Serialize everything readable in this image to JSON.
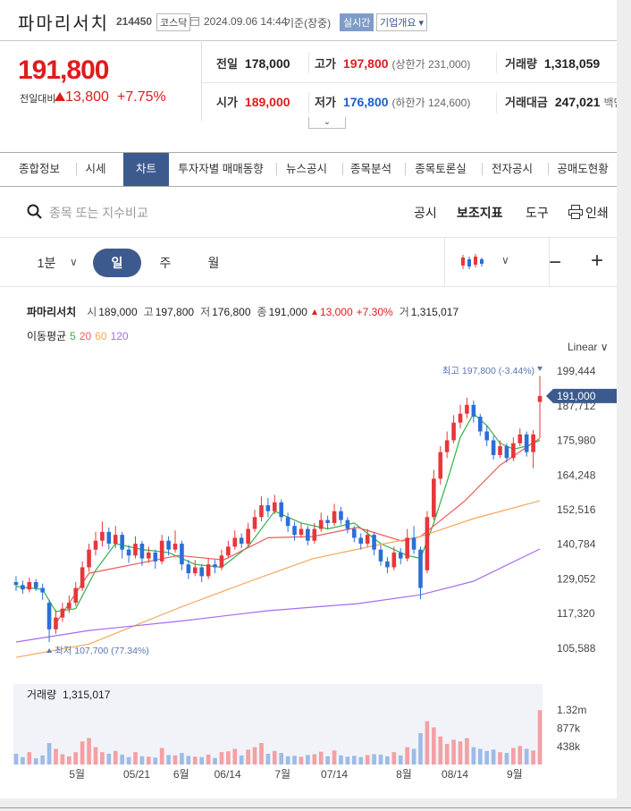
{
  "header": {
    "title": "파마리서치",
    "code": "214450",
    "market": "코스닥",
    "datetime": "2024.09.06 14:44",
    "basis": "기준(장중)",
    "realtime": "실시간",
    "company_info": "기업개요"
  },
  "quote": {
    "price": "191,800",
    "change_label": "전일대비",
    "change": "13,800",
    "change_pct": "+7.75%",
    "stats": [
      {
        "label": "전일",
        "value": "178,000",
        "color": "#222222"
      },
      {
        "label": "고가",
        "value": "197,800",
        "note": "(상한가 231,000)",
        "color": "#e01c1c"
      },
      {
        "label": "거래량",
        "value": "1,318,059",
        "color": "#222222"
      },
      {
        "label": "시가",
        "value": "189,000",
        "color": "#e01c1c"
      },
      {
        "label": "저가",
        "value": "176,800",
        "note": "(하한가 124,600)",
        "color": "#1a5fd0"
      },
      {
        "label": "거래대금",
        "value": "247,021",
        "note": "백만",
        "color": "#222222"
      }
    ]
  },
  "tabs": [
    {
      "label": "종합정보"
    },
    {
      "label": "시세"
    },
    {
      "label": "차트",
      "active": true
    },
    {
      "label": "투자자별 매매동향"
    },
    {
      "label": "뉴스공시"
    },
    {
      "label": "종목분석"
    },
    {
      "label": "종목토론실"
    },
    {
      "label": "전자공시"
    },
    {
      "label": "공매도현황"
    }
  ],
  "toolbar": {
    "search_placeholder": "종목 또는 지수비교",
    "links": [
      "공시",
      "보조지표",
      "도구",
      "인쇄"
    ]
  },
  "periods": [
    {
      "label": "1분"
    },
    {
      "label": "일",
      "active": true
    },
    {
      "label": "주"
    },
    {
      "label": "월"
    }
  ],
  "chart_data": {
    "type": "candlestick",
    "info": {
      "name": "파마리서치",
      "items": [
        {
          "label": "시",
          "value": "189,000"
        },
        {
          "label": "고",
          "value": "197,800"
        },
        {
          "label": "저",
          "value": "176,800"
        },
        {
          "label": "종",
          "value": "191,000"
        }
      ],
      "change": "13,000",
      "change_pct": "+7.30%",
      "volume_label": "거",
      "volume": "1,315,017"
    },
    "ma_title": "이동평균",
    "scale_label": "Linear",
    "high_label": "최고 197,800 (-3.44%)",
    "low_label": "최저 107,700 (77.34%)",
    "last_label": "191,000",
    "up_color": "#e8363b",
    "down_color": "#2b6fd6",
    "volume_up_color": "#f4a0a3",
    "volume_down_color": "#9dbbe8",
    "grid": false,
    "xlim": [
      -0.4,
      79.4
    ],
    "xticks": [
      {
        "value": 9.2,
        "label": "5월"
      },
      {
        "value": 18.2,
        "label": "05/21"
      },
      {
        "value": 24.9,
        "label": "6월"
      },
      {
        "value": 31.9,
        "label": "06/14"
      },
      {
        "value": 40.2,
        "label": "7월"
      },
      {
        "value": 48,
        "label": "07/14"
      },
      {
        "value": 58.5,
        "label": "8월"
      },
      {
        "value": 66.2,
        "label": "08/14"
      },
      {
        "value": 75.2,
        "label": "9월"
      }
    ],
    "ylim": [
      96504,
      205500
    ],
    "yticks": [
      {
        "value": 105588,
        "label": "105,588"
      },
      {
        "value": 117320,
        "label": "117,320"
      },
      {
        "value": 129052,
        "label": "129,052"
      },
      {
        "value": 140784,
        "label": "140,784"
      },
      {
        "value": 152516,
        "label": "152,516"
      },
      {
        "value": 164248,
        "label": "164,248"
      },
      {
        "value": 175980,
        "label": "175,980"
      },
      {
        "value": 187712,
        "label": "187,712"
      },
      {
        "value": 199444,
        "label": "199,444"
      }
    ],
    "candles": [
      [
        128000,
        130000,
        125000,
        127000
      ],
      [
        127000,
        128500,
        124000,
        125500
      ],
      [
        125500,
        129500,
        124500,
        128000
      ],
      [
        128000,
        129000,
        125000,
        126000
      ],
      [
        126000,
        127500,
        122000,
        124500
      ],
      [
        121000,
        122000,
        107700,
        112000
      ],
      [
        112000,
        118500,
        110500,
        116000
      ],
      [
        116000,
        121000,
        114500,
        119000
      ],
      [
        119000,
        123500,
        117500,
        121000
      ],
      [
        121000,
        128000,
        120000,
        126000
      ],
      [
        126000,
        135000,
        125000,
        133000
      ],
      [
        133000,
        141000,
        131500,
        139000
      ],
      [
        139000,
        145000,
        137000,
        142000
      ],
      [
        142000,
        148500,
        140000,
        145000
      ],
      [
        145000,
        146500,
        139000,
        141000
      ],
      [
        141000,
        147000,
        139500,
        144000
      ],
      [
        144000,
        145000,
        136000,
        139000
      ],
      [
        139000,
        140500,
        134500,
        137000
      ],
      [
        137000,
        143500,
        136000,
        141000
      ],
      [
        141000,
        142000,
        133500,
        136000
      ],
      [
        136000,
        140000,
        134500,
        138000
      ],
      [
        138000,
        139000,
        132500,
        135000
      ],
      [
        135000,
        144000,
        134000,
        142000
      ],
      [
        142000,
        143500,
        137000,
        139000
      ],
      [
        139000,
        145500,
        138000,
        141000
      ],
      [
        141000,
        142000,
        132000,
        134000
      ],
      [
        134000,
        135500,
        129000,
        131000
      ],
      [
        131000,
        135500,
        130000,
        133000
      ],
      [
        133000,
        134000,
        128000,
        130000
      ],
      [
        130000,
        136000,
        129000,
        134000
      ],
      [
        134000,
        135500,
        131000,
        133000
      ],
      [
        133000,
        139000,
        132000,
        137000
      ],
      [
        137000,
        142000,
        136000,
        140000
      ],
      [
        140000,
        145500,
        139000,
        143000
      ],
      [
        143000,
        144500,
        139500,
        141000
      ],
      [
        141000,
        148000,
        140000,
        146000
      ],
      [
        146000,
        152500,
        145000,
        150000
      ],
      [
        150000,
        157000,
        148500,
        154000
      ],
      [
        154000,
        156500,
        150000,
        152000
      ],
      [
        152000,
        157500,
        151000,
        155000
      ],
      [
        155000,
        156000,
        148500,
        150000
      ],
      [
        150000,
        151500,
        145000,
        147000
      ],
      [
        147000,
        148500,
        142000,
        144000
      ],
      [
        144000,
        148000,
        143000,
        146000
      ],
      [
        146000,
        147000,
        140500,
        142000
      ],
      [
        142000,
        148000,
        141000,
        146000
      ],
      [
        146000,
        151500,
        145000,
        149000
      ],
      [
        149000,
        150500,
        146000,
        148000
      ],
      [
        148000,
        154500,
        147000,
        152000
      ],
      [
        152000,
        153500,
        147500,
        149000
      ],
      [
        149000,
        150000,
        144500,
        146000
      ],
      [
        146000,
        147000,
        141500,
        143000
      ],
      [
        143000,
        144500,
        139000,
        141000
      ],
      [
        141000,
        146000,
        140000,
        144000
      ],
      [
        144000,
        145000,
        137000,
        139000
      ],
      [
        139000,
        140500,
        133500,
        135000
      ],
      [
        135000,
        136500,
        131000,
        133000
      ],
      [
        133000,
        140000,
        132000,
        138000
      ],
      [
        138000,
        139500,
        134000,
        136000
      ],
      [
        136000,
        146000,
        135000,
        143000
      ],
      [
        143000,
        147000,
        137500,
        139000
      ],
      [
        139000,
        140000,
        122200,
        126000
      ],
      [
        132000,
        152000,
        131000,
        150000
      ],
      [
        150000,
        166000,
        149000,
        163000
      ],
      [
        163000,
        174000,
        161000,
        172000
      ],
      [
        172000,
        179000,
        170000,
        176000
      ],
      [
        176000,
        184500,
        175000,
        182000
      ],
      [
        182000,
        188000,
        180000,
        185000
      ],
      [
        185000,
        190400,
        183500,
        188000
      ],
      [
        188000,
        189500,
        182000,
        184000
      ],
      [
        184000,
        185000,
        177500,
        179000
      ],
      [
        179000,
        181000,
        174000,
        176000
      ],
      [
        176000,
        177500,
        169500,
        171000
      ],
      [
        171000,
        176000,
        170000,
        174000
      ],
      [
        174000,
        175000,
        168500,
        170000
      ],
      [
        170000,
        177000,
        169000,
        175000
      ],
      [
        175000,
        180000,
        174000,
        178000
      ],
      [
        178000,
        179000,
        170500,
        172000
      ],
      [
        172000,
        179500,
        166500,
        178000
      ],
      [
        189000,
        197800,
        176800,
        191000
      ]
    ],
    "moving_averages": [
      {
        "name": "5",
        "color": "#2db24a",
        "x": [
          0,
          4,
          6,
          9,
          12,
          15,
          19,
          23,
          27,
          31,
          35,
          39,
          43,
          47,
          51,
          55,
          59,
          61,
          63,
          65,
          67,
          69,
          71,
          73,
          75,
          77,
          79
        ],
        "values": [
          126500,
          125500,
          118000,
          119000,
          132000,
          141000,
          139000,
          138000,
          134000,
          133000,
          140000,
          152000,
          148000,
          146000,
          148000,
          141000,
          137000,
          136000,
          148000,
          162000,
          177000,
          185000,
          181000,
          175000,
          173000,
          174000,
          176000
        ]
      },
      {
        "name": "20",
        "color": "#f05a5a",
        "x": [
          5.7,
          11,
          24.5,
          31.3,
          38,
          44.7,
          51.5,
          58.2,
          61,
          67.7,
          73,
          79
        ],
        "values": [
          113000,
          131000,
          137000,
          135500,
          143000,
          143400,
          146500,
          141900,
          143400,
          155500,
          167600,
          176700
        ]
      },
      {
        "name": "60",
        "color": "#f5a55a",
        "x": [
          0,
          11,
          24.5,
          35.3,
          44.7,
          54.2,
          61,
          69,
          79
        ],
        "values": [
          102500,
          107000,
          119200,
          128300,
          135900,
          140400,
          143400,
          149500,
          155500
        ]
      },
      {
        "name": "120",
        "color": "#a66bf0",
        "x": [
          0,
          11,
          24.5,
          38,
          51.5,
          61,
          69,
          79
        ],
        "values": [
          107700,
          111600,
          114700,
          118300,
          120700,
          123700,
          128300,
          139200
        ]
      }
    ],
    "volume_title": "거래량",
    "volume_total": "1,315,017",
    "volume": [
      260000,
      180000,
      300000,
      150000,
      220000,
      520000,
      380000,
      250000,
      200000,
      300000,
      560000,
      640000,
      420000,
      300000,
      260000,
      330000,
      240000,
      180000,
      300000,
      200000,
      190000,
      170000,
      400000,
      230000,
      220000,
      280000,
      210000,
      190000,
      180000,
      240000,
      160000,
      300000,
      320000,
      380000,
      220000,
      360000,
      420000,
      520000,
      260000,
      330000,
      280000,
      200000,
      210000,
      190000,
      230000,
      250000,
      310000,
      200000,
      340000,
      220000,
      190000,
      210000,
      180000,
      230000,
      250000,
      240000,
      200000,
      300000,
      220000,
      420000,
      380000,
      760000,
      1050000,
      900000,
      680000,
      500000,
      600000,
      560000,
      640000,
      420000,
      380000,
      330000,
      360000,
      300000,
      280000,
      400000,
      450000,
      380000,
      340000,
      1315017
    ],
    "volume_ylim": [
      0,
      1950000
    ],
    "volume_yticks": [
      {
        "value": 438000,
        "label": "438k"
      },
      {
        "value": 877000,
        "label": "877k"
      },
      {
        "value": 1320000,
        "label": "1.32m"
      }
    ]
  }
}
